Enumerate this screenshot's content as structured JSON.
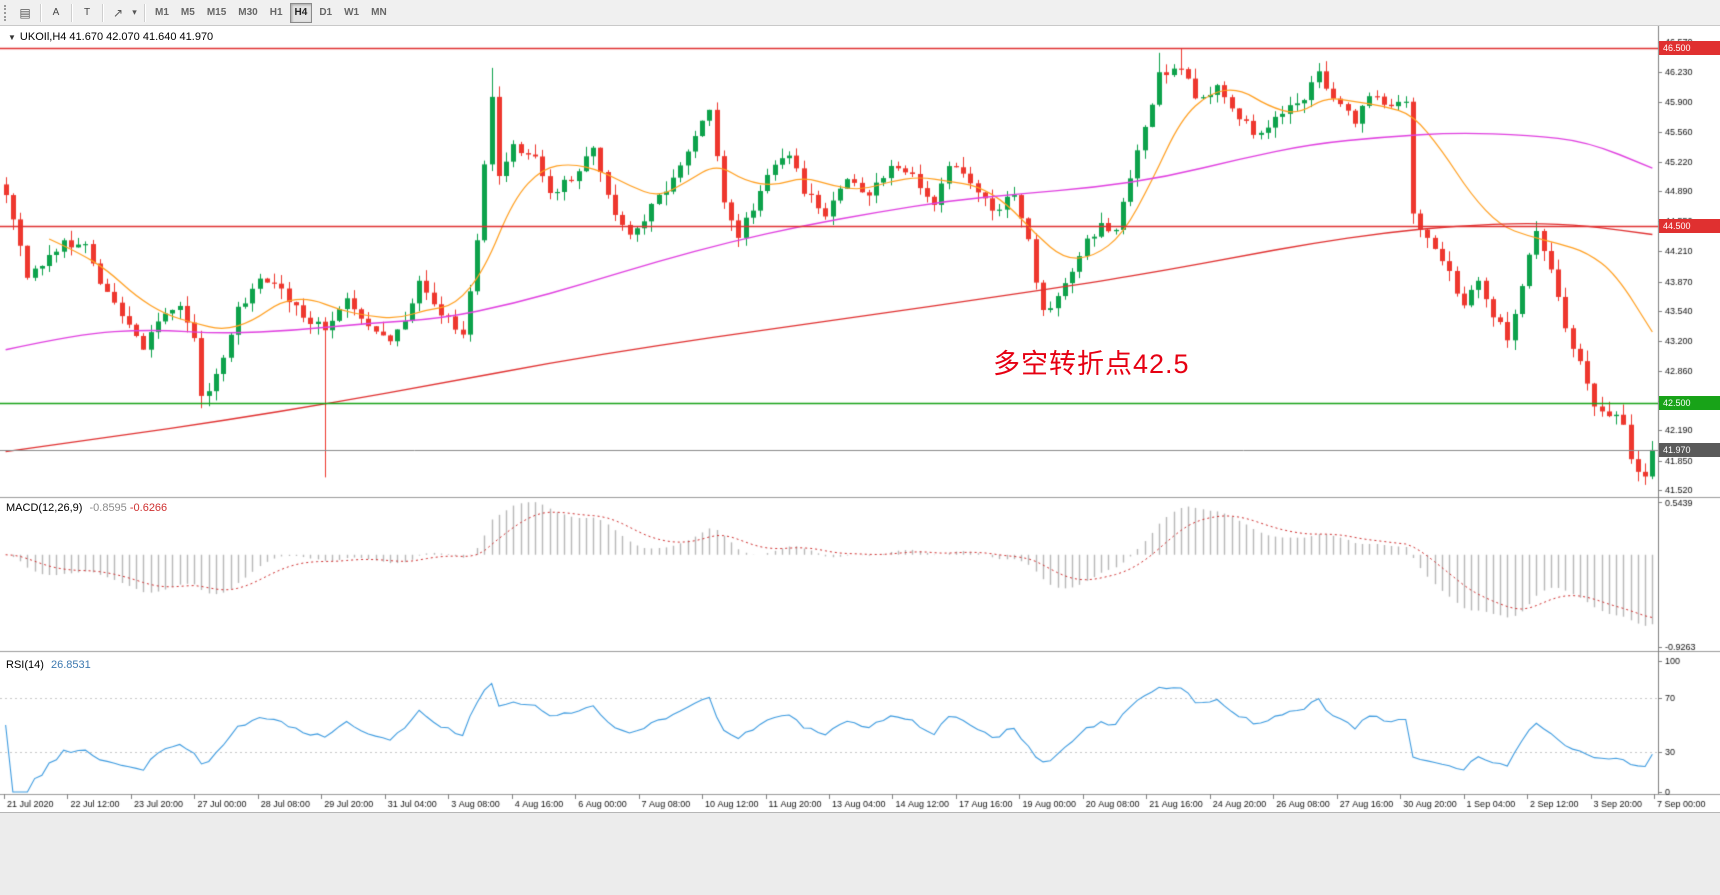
{
  "toolbar": {
    "icons": [
      {
        "name": "bar-chart-icon",
        "glyph": "▤"
      },
      {
        "name": "text-label-a-icon",
        "glyph": "A"
      },
      {
        "name": "text-label-t-icon",
        "glyph": "T"
      },
      {
        "name": "trendline-icon",
        "glyph": "↗"
      },
      {
        "name": "dropdown-arrow-icon",
        "glyph": "▾"
      }
    ],
    "timeframes": [
      "M1",
      "M5",
      "M15",
      "M30",
      "H1",
      "H4",
      "D1",
      "W1",
      "MN"
    ],
    "active_timeframe": "H4"
  },
  "header": {
    "expander": "▼",
    "symbol_ohlc": "UKOIl,H4 41.670 42.070 41.640 41.970"
  },
  "annotation": {
    "text": "多空转折点42.5",
    "color": "#e60012"
  },
  "colors": {
    "up": "#0da24b",
    "down": "#ee372e",
    "axis_text": "#111111",
    "axis_line": "#808080",
    "separator": "#9a9a9a"
  },
  "chart_data": {
    "type": "candlestick",
    "title": "UKOIl,H4",
    "timeframe": "H4",
    "ohlc_display": {
      "open": "41.670",
      "high": "42.070",
      "low": "41.640",
      "close": "41.970"
    },
    "price_range": [
      41.45,
      46.73
    ],
    "price_ticks": [
      "46.570",
      "46.230",
      "45.900",
      "45.560",
      "45.220",
      "44.890",
      "44.550",
      "44.210",
      "43.870",
      "43.540",
      "43.200",
      "42.860",
      "42.520",
      "42.190",
      "41.850",
      "41.520"
    ],
    "time_labels": [
      "21 Jul 2020",
      "22 Jul 12:00",
      "23 Jul 20:00",
      "27 Jul 00:00",
      "28 Jul 08:00",
      "29 Jul 20:00",
      "31 Jul 04:00",
      "3 Aug 08:00",
      "4 Aug 16:00",
      "6 Aug 00:00",
      "7 Aug 08:00",
      "10 Aug 12:00",
      "11 Aug 20:00",
      "13 Aug 04:00",
      "14 Aug 12:00",
      "17 Aug 16:00",
      "19 Aug 00:00",
      "20 Aug 08:00",
      "21 Aug 16:00",
      "24 Aug 20:00",
      "26 Aug 08:00",
      "27 Aug 16:00",
      "30 Aug 20:00",
      "1 Sep 04:00",
      "2 Sep 12:00",
      "3 Sep 20:00",
      "7 Sep 00:00"
    ],
    "candle_count": 228,
    "close_anchors": [
      [
        0,
        44.85
      ],
      [
        2,
        44.3
      ],
      [
        3,
        43.95
      ],
      [
        5,
        44.05
      ],
      [
        8,
        44.3
      ],
      [
        11,
        44.25
      ],
      [
        13,
        43.85
      ],
      [
        16,
        43.45
      ],
      [
        19,
        43.15
      ],
      [
        21,
        43.4
      ],
      [
        24,
        43.6
      ],
      [
        26,
        43.25
      ],
      [
        27,
        42.55
      ],
      [
        29,
        42.8
      ],
      [
        32,
        43.55
      ],
      [
        35,
        43.9
      ],
      [
        38,
        43.75
      ],
      [
        41,
        43.5
      ],
      [
        44,
        43.3
      ],
      [
        47,
        43.65
      ],
      [
        50,
        43.4
      ],
      [
        53,
        43.15
      ],
      [
        56,
        43.6
      ],
      [
        57,
        43.9
      ],
      [
        60,
        43.5
      ],
      [
        63,
        43.3
      ],
      [
        65,
        44.3
      ],
      [
        67,
        46.0
      ],
      [
        68,
        45.1
      ],
      [
        70,
        45.4
      ],
      [
        73,
        45.25
      ],
      [
        75,
        44.85
      ],
      [
        78,
        45.05
      ],
      [
        81,
        45.35
      ],
      [
        84,
        44.6
      ],
      [
        86,
        44.35
      ],
      [
        89,
        44.7
      ],
      [
        92,
        45.0
      ],
      [
        95,
        45.55
      ],
      [
        97,
        45.8
      ],
      [
        99,
        44.8
      ],
      [
        101,
        44.4
      ],
      [
        103,
        44.7
      ],
      [
        105,
        45.1
      ],
      [
        108,
        45.3
      ],
      [
        110,
        44.9
      ],
      [
        113,
        44.65
      ],
      [
        116,
        45.0
      ],
      [
        119,
        44.85
      ],
      [
        122,
        45.2
      ],
      [
        125,
        45.05
      ],
      [
        128,
        44.7
      ],
      [
        130,
        45.2
      ],
      [
        133,
        45.0
      ],
      [
        136,
        44.65
      ],
      [
        139,
        44.85
      ],
      [
        141,
        44.3
      ],
      [
        143,
        43.5
      ],
      [
        146,
        43.85
      ],
      [
        149,
        44.35
      ],
      [
        151,
        44.5
      ],
      [
        153,
        44.45
      ],
      [
        155,
        45.0
      ],
      [
        157,
        45.6
      ],
      [
        159,
        46.2
      ],
      [
        162,
        46.3
      ],
      [
        164,
        45.95
      ],
      [
        167,
        46.05
      ],
      [
        170,
        45.7
      ],
      [
        173,
        45.5
      ],
      [
        176,
        45.8
      ],
      [
        179,
        45.95
      ],
      [
        181,
        46.2
      ],
      [
        183,
        45.9
      ],
      [
        186,
        45.7
      ],
      [
        188,
        45.95
      ],
      [
        191,
        45.85
      ],
      [
        193,
        45.9
      ],
      [
        194,
        44.6
      ],
      [
        196,
        44.4
      ],
      [
        199,
        43.95
      ],
      [
        201,
        43.6
      ],
      [
        203,
        43.9
      ],
      [
        205,
        43.5
      ],
      [
        207,
        43.25
      ],
      [
        209,
        43.85
      ],
      [
        211,
        44.4
      ],
      [
        213,
        44.05
      ],
      [
        215,
        43.35
      ],
      [
        217,
        42.95
      ],
      [
        219,
        42.45
      ],
      [
        221,
        42.4
      ],
      [
        223,
        42.25
      ],
      [
        224,
        41.85
      ],
      [
        226,
        41.67
      ],
      [
        227,
        41.97
      ]
    ],
    "special_wicks": [
      {
        "i": 27,
        "low": 42.44
      },
      {
        "i": 44,
        "low": 41.66
      },
      {
        "i": 67,
        "high": 46.28
      },
      {
        "i": 159,
        "high": 46.45
      },
      {
        "i": 162,
        "high": 46.5
      },
      {
        "i": 211,
        "high": 44.55
      }
    ],
    "last_candle": {
      "open": 41.67,
      "high": 42.07,
      "low": 41.64,
      "close": 41.97
    },
    "ma_lines": [
      {
        "name": "ma-fast",
        "color": "#ff9f1f",
        "width": 1.2,
        "points": [
          [
            6,
            44.35
          ],
          [
            10,
            44.2
          ],
          [
            14,
            44.0
          ],
          [
            18,
            43.7
          ],
          [
            22,
            43.5
          ],
          [
            26,
            43.4
          ],
          [
            30,
            43.32
          ],
          [
            34,
            43.42
          ],
          [
            38,
            43.65
          ],
          [
            42,
            43.68
          ],
          [
            46,
            43.55
          ],
          [
            50,
            43.48
          ],
          [
            54,
            43.45
          ],
          [
            58,
            43.55
          ],
          [
            62,
            43.6
          ],
          [
            66,
            44.0
          ],
          [
            70,
            44.8
          ],
          [
            74,
            45.15
          ],
          [
            78,
            45.2
          ],
          [
            82,
            45.12
          ],
          [
            86,
            44.95
          ],
          [
            90,
            44.82
          ],
          [
            94,
            45.0
          ],
          [
            98,
            45.2
          ],
          [
            102,
            45.0
          ],
          [
            106,
            44.95
          ],
          [
            110,
            45.05
          ],
          [
            114,
            44.95
          ],
          [
            118,
            44.9
          ],
          [
            122,
            45.0
          ],
          [
            126,
            45.05
          ],
          [
            130,
            45.0
          ],
          [
            134,
            44.95
          ],
          [
            138,
            44.75
          ],
          [
            142,
            44.4
          ],
          [
            146,
            44.12
          ],
          [
            150,
            44.15
          ],
          [
            154,
            44.4
          ],
          [
            158,
            45.0
          ],
          [
            162,
            45.7
          ],
          [
            166,
            46.0
          ],
          [
            170,
            46.05
          ],
          [
            174,
            45.85
          ],
          [
            178,
            45.75
          ],
          [
            182,
            45.95
          ],
          [
            186,
            45.9
          ],
          [
            190,
            45.85
          ],
          [
            194,
            45.75
          ],
          [
            198,
            45.35
          ],
          [
            202,
            44.85
          ],
          [
            206,
            44.5
          ],
          [
            210,
            44.38
          ],
          [
            214,
            44.3
          ],
          [
            218,
            44.2
          ],
          [
            222,
            43.95
          ],
          [
            227,
            43.3
          ]
        ]
      },
      {
        "name": "ma-mid",
        "color": "#e040e0",
        "width": 1.4,
        "points": [
          [
            0,
            43.1
          ],
          [
            10,
            43.28
          ],
          [
            20,
            43.33
          ],
          [
            30,
            43.28
          ],
          [
            40,
            43.32
          ],
          [
            50,
            43.4
          ],
          [
            60,
            43.45
          ],
          [
            70,
            43.62
          ],
          [
            80,
            43.85
          ],
          [
            90,
            44.1
          ],
          [
            100,
            44.32
          ],
          [
            110,
            44.5
          ],
          [
            120,
            44.65
          ],
          [
            130,
            44.78
          ],
          [
            140,
            44.86
          ],
          [
            150,
            44.93
          ],
          [
            160,
            45.05
          ],
          [
            170,
            45.25
          ],
          [
            180,
            45.42
          ],
          [
            190,
            45.5
          ],
          [
            200,
            45.55
          ],
          [
            210,
            45.52
          ],
          [
            218,
            45.45
          ],
          [
            227,
            45.15
          ]
        ]
      },
      {
        "name": "ma-slow",
        "color": "#e03030",
        "width": 1.4,
        "points": [
          [
            0,
            41.95
          ],
          [
            15,
            42.12
          ],
          [
            30,
            42.3
          ],
          [
            45,
            42.5
          ],
          [
            60,
            42.72
          ],
          [
            75,
            42.95
          ],
          [
            90,
            43.15
          ],
          [
            105,
            43.33
          ],
          [
            120,
            43.5
          ],
          [
            135,
            43.68
          ],
          [
            150,
            43.86
          ],
          [
            160,
            44.0
          ],
          [
            170,
            44.15
          ],
          [
            180,
            44.3
          ],
          [
            190,
            44.42
          ],
          [
            200,
            44.5
          ],
          [
            210,
            44.53
          ],
          [
            218,
            44.5
          ],
          [
            227,
            44.4
          ]
        ]
      }
    ],
    "hlines": [
      {
        "price": 46.5,
        "color": "#e03030",
        "lw": 1.4,
        "label": "46.500",
        "label_bg": "#e03030"
      },
      {
        "price": 44.5,
        "color": "#e03030",
        "lw": 1.4,
        "label": "44.500",
        "label_bg": "#e03030"
      },
      {
        "price": 42.5,
        "color": "#18a318",
        "lw": 1.4,
        "label": "42.500",
        "label_bg": "#18a318"
      },
      {
        "price": 41.97,
        "color": "#8a8a8a",
        "lw": 1.0,
        "label": "41.970",
        "label_bg": "#5a5a5a"
      }
    ],
    "indicators": {
      "macd": {
        "label": "MACD(12,26,9)",
        "values": [
          "-0.8595",
          "-0.6266"
        ],
        "params": [
          12,
          26,
          9
        ],
        "axis": [
          "0.5439",
          "-0.9263"
        ],
        "range": [
          -0.9263,
          0.5439
        ],
        "hist_color": "#b8b8b8",
        "signal_color": "#d03030"
      },
      "rsi": {
        "label": "RSI(14)",
        "value": "26.8531",
        "period": 14,
        "axis": [
          100,
          70,
          30,
          0
        ],
        "levels": [
          70,
          30
        ],
        "color": "#3d9be0",
        "range": [
          0,
          100
        ]
      }
    }
  }
}
